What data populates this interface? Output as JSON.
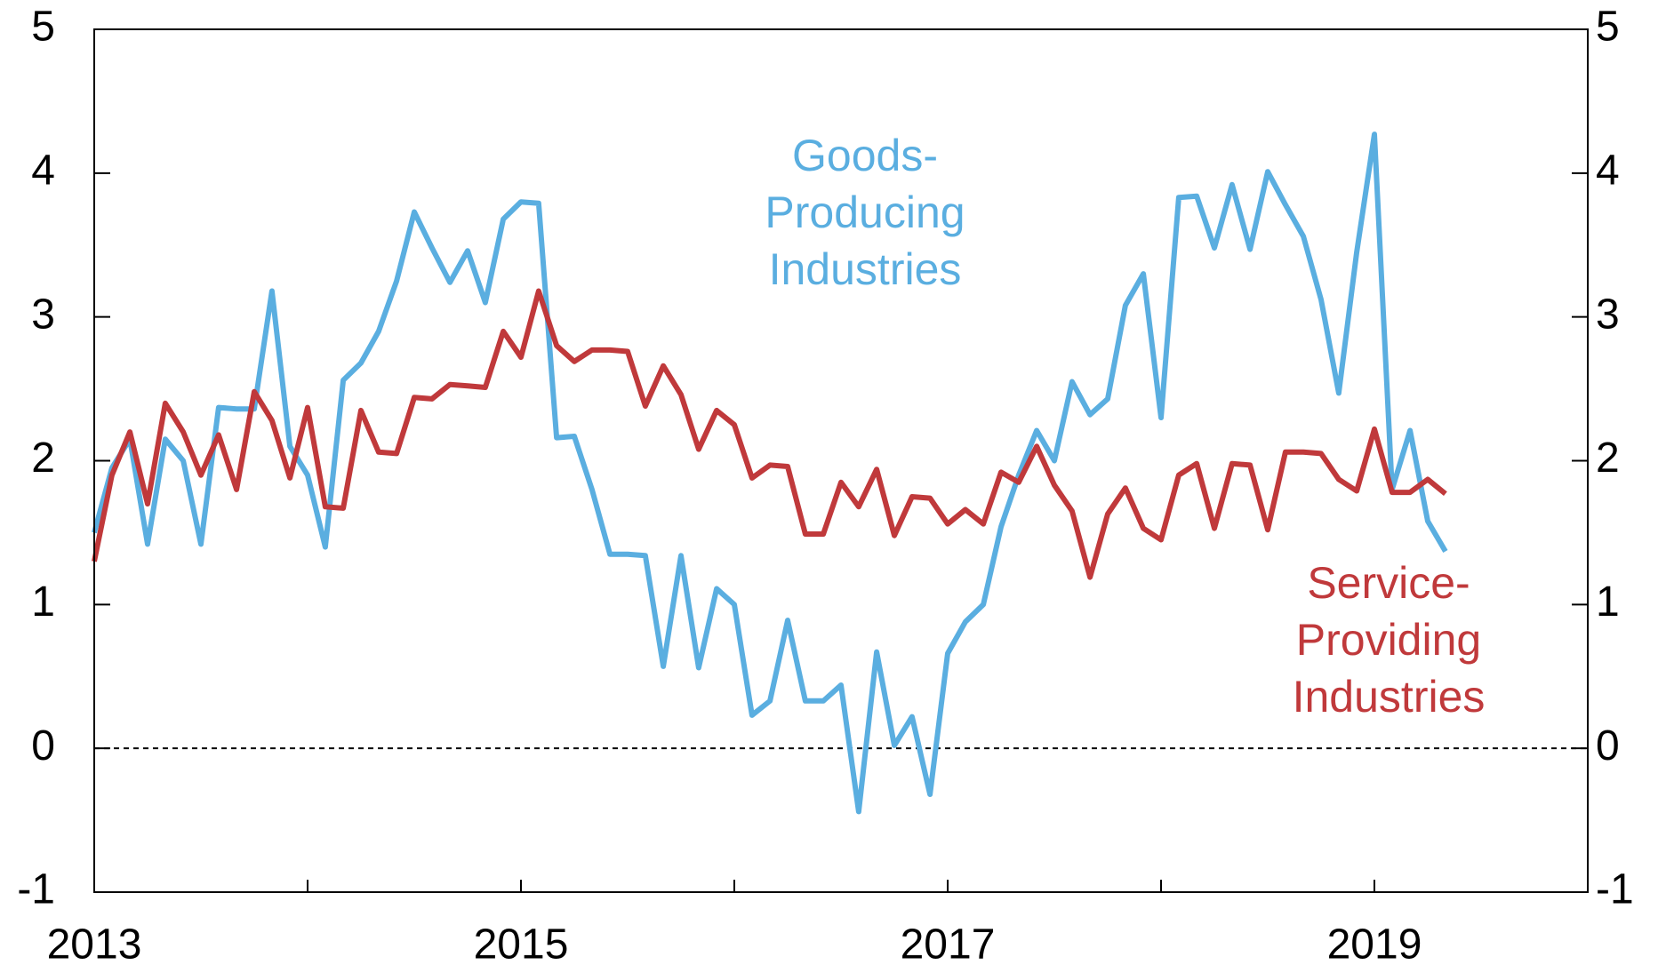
{
  "chart_data": {
    "type": "line",
    "x": [
      2013.0,
      2013.083,
      2013.167,
      2013.25,
      2013.333,
      2013.417,
      2013.5,
      2013.583,
      2013.667,
      2013.75,
      2013.833,
      2013.917,
      2014.0,
      2014.083,
      2014.167,
      2014.25,
      2014.333,
      2014.417,
      2014.5,
      2014.583,
      2014.667,
      2014.75,
      2014.833,
      2014.917,
      2015.0,
      2015.083,
      2015.167,
      2015.25,
      2015.333,
      2015.417,
      2015.5,
      2015.583,
      2015.667,
      2015.75,
      2015.833,
      2015.917,
      2016.0,
      2016.083,
      2016.167,
      2016.25,
      2016.333,
      2016.417,
      2016.5,
      2016.583,
      2016.667,
      2016.75,
      2016.833,
      2016.917,
      2017.0,
      2017.083,
      2017.167,
      2017.25,
      2017.333,
      2017.417,
      2017.5,
      2017.583,
      2017.667,
      2017.75,
      2017.833,
      2017.917,
      2018.0,
      2018.083,
      2018.167,
      2018.25,
      2018.333,
      2018.417,
      2018.5,
      2018.583,
      2018.667,
      2018.75,
      2018.833,
      2018.917,
      2019.0,
      2019.083,
      2019.167,
      2019.25,
      2019.333
    ],
    "series": [
      {
        "name": [
          "Goods-",
          "Producing",
          "Industries"
        ],
        "color": "#5aaee0",
        "values": [
          1.5,
          1.95,
          2.15,
          1.42,
          2.15,
          2.0,
          1.42,
          2.37,
          2.36,
          2.36,
          3.18,
          2.1,
          1.9,
          1.4,
          2.56,
          2.68,
          2.9,
          3.25,
          3.73,
          3.48,
          3.24,
          3.46,
          3.1,
          3.68,
          3.8,
          3.79,
          2.16,
          2.17,
          1.8,
          1.35,
          1.35,
          1.34,
          0.57,
          1.34,
          0.56,
          1.11,
          1.0,
          0.23,
          0.33,
          0.89,
          0.33,
          0.33,
          0.44,
          -0.44,
          0.67,
          0.02,
          0.22,
          -0.32,
          0.66,
          0.88,
          1.0,
          1.54,
          1.9,
          2.21,
          2.0,
          2.55,
          2.32,
          2.43,
          3.08,
          3.3,
          2.3,
          3.83,
          3.84,
          3.48,
          3.92,
          3.47,
          4.01,
          3.78,
          3.56,
          3.12,
          2.47,
          3.45,
          4.27,
          1.8,
          2.21,
          1.58,
          1.37
        ]
      },
      {
        "name": [
          "Service-",
          "Providing",
          "Industries"
        ],
        "color": "#c0393b",
        "values": [
          1.3,
          1.9,
          2.2,
          1.7,
          2.4,
          2.2,
          1.9,
          2.18,
          1.8,
          2.48,
          2.28,
          1.88,
          2.37,
          1.68,
          1.67,
          2.35,
          2.06,
          2.05,
          2.44,
          2.43,
          2.53,
          2.52,
          2.51,
          2.9,
          2.72,
          3.18,
          2.8,
          2.69,
          2.77,
          2.77,
          2.76,
          2.38,
          2.66,
          2.46,
          2.08,
          2.35,
          2.25,
          1.88,
          1.97,
          1.96,
          1.49,
          1.49,
          1.85,
          1.68,
          1.94,
          1.48,
          1.75,
          1.74,
          1.56,
          1.66,
          1.56,
          1.92,
          1.85,
          2.1,
          1.83,
          1.65,
          1.19,
          1.63,
          1.81,
          1.53,
          1.45,
          1.9,
          1.98,
          1.53,
          1.98,
          1.97,
          1.52,
          2.06,
          2.06,
          2.05,
          1.87,
          1.79,
          2.22,
          1.78,
          1.78,
          1.87,
          1.77
        ]
      }
    ],
    "xlim": [
      2013,
      2020
    ],
    "xticks": [
      2013,
      {
        "value": 2014,
        "label": null
      },
      2015,
      {
        "value": 2016,
        "label": null
      },
      2017,
      {
        "value": 2018,
        "label": null
      },
      2019,
      {
        "value": 2020,
        "label": null
      }
    ],
    "ylim": [
      -1,
      5
    ],
    "yticks": [
      -1,
      0,
      1,
      2,
      3,
      4,
      5
    ],
    "y2lim": [
      -1,
      5
    ],
    "y2ticks": [
      -1,
      0,
      1,
      2,
      3,
      4,
      5
    ],
    "zero_line": "dashed"
  }
}
